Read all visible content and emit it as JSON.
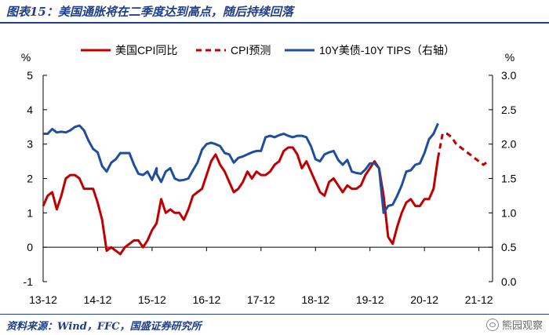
{
  "figure": {
    "title": "图表15：美国通胀将在二季度达到高点，随后持续回落",
    "source": "资料来源：Wind，FFC，国盛证券研究所",
    "watermark": "熊园观察"
  },
  "chart_data": {
    "type": "line",
    "title": "图表15：美国通胀将在二季度达到高点，随后持续回落",
    "y_left": {
      "label": "%",
      "range": [
        -1,
        5
      ],
      "ticks": [
        "-1",
        "0",
        "1",
        "2",
        "3",
        "4",
        "5"
      ]
    },
    "y_right": {
      "label": "%",
      "range": [
        0.0,
        3.0
      ],
      "ticks": [
        "0.0",
        "0.5",
        "1.0",
        "1.5",
        "2.0",
        "2.5",
        "3.0"
      ]
    },
    "x_axis": {
      "range": [
        "2013-12",
        "2022-03"
      ],
      "ticks": [
        {
          "label": "13-12",
          "date": "2013-12"
        },
        {
          "label": "14-12",
          "date": "2014-12"
        },
        {
          "label": "15-12",
          "date": "2015-12"
        },
        {
          "label": "16-12",
          "date": "2016-12"
        },
        {
          "label": "17-12",
          "date": "2017-12"
        },
        {
          "label": "18-12",
          "date": "2018-12"
        },
        {
          "label": "19-12",
          "date": "2019-12"
        },
        {
          "label": "20-12",
          "date": "2020-12"
        },
        {
          "label": "21-12",
          "date": "2021-12"
        }
      ]
    },
    "grid": false,
    "legend_position": "top",
    "series": [
      {
        "name": "美国CPI同比",
        "axis": "left",
        "color": "#c00000",
        "style": "solid",
        "points": [
          [
            "2013-12",
            1.2
          ],
          [
            "2014-01",
            1.5
          ],
          [
            "2014-02",
            1.6
          ],
          [
            "2014-03",
            1.1
          ],
          [
            "2014-04",
            1.5
          ],
          [
            "2014-05",
            2.0
          ],
          [
            "2014-06",
            2.1
          ],
          [
            "2014-07",
            2.1
          ],
          [
            "2014-08",
            2.0
          ],
          [
            "2014-09",
            1.7
          ],
          [
            "2014-10",
            1.7
          ],
          [
            "2014-11",
            1.7
          ],
          [
            "2014-12",
            1.3
          ],
          [
            "2015-01",
            0.8
          ],
          [
            "2015-02",
            -0.1
          ],
          [
            "2015-03",
            0.0
          ],
          [
            "2015-04",
            -0.1
          ],
          [
            "2015-05",
            -0.2
          ],
          [
            "2015-06",
            0.0
          ],
          [
            "2015-07",
            0.1
          ],
          [
            "2015-08",
            0.2
          ],
          [
            "2015-09",
            0.2
          ],
          [
            "2015-10",
            0.0
          ],
          [
            "2015-11",
            0.2
          ],
          [
            "2015-12",
            0.5
          ],
          [
            "2016-01",
            0.7
          ],
          [
            "2016-02",
            1.4
          ],
          [
            "2016-03",
            1.0
          ],
          [
            "2016-04",
            1.1
          ],
          [
            "2016-05",
            1.0
          ],
          [
            "2016-06",
            1.0
          ],
          [
            "2016-07",
            0.8
          ],
          [
            "2016-08",
            1.1
          ],
          [
            "2016-09",
            1.5
          ],
          [
            "2016-10",
            1.6
          ],
          [
            "2016-11",
            1.7
          ],
          [
            "2016-12",
            2.1
          ],
          [
            "2017-01",
            2.5
          ],
          [
            "2017-02",
            2.7
          ],
          [
            "2017-03",
            2.4
          ],
          [
            "2017-04",
            2.2
          ],
          [
            "2017-05",
            1.9
          ],
          [
            "2017-06",
            1.6
          ],
          [
            "2017-07",
            1.7
          ],
          [
            "2017-08",
            1.9
          ],
          [
            "2017-09",
            2.2
          ],
          [
            "2017-10",
            2.0
          ],
          [
            "2017-11",
            2.2
          ],
          [
            "2017-12",
            2.1
          ],
          [
            "2018-01",
            2.1
          ],
          [
            "2018-02",
            2.2
          ],
          [
            "2018-03",
            2.4
          ],
          [
            "2018-04",
            2.5
          ],
          [
            "2018-05",
            2.8
          ],
          [
            "2018-06",
            2.9
          ],
          [
            "2018-07",
            2.9
          ],
          [
            "2018-08",
            2.7
          ],
          [
            "2018-09",
            2.3
          ],
          [
            "2018-10",
            2.5
          ],
          [
            "2018-11",
            2.2
          ],
          [
            "2018-12",
            1.9
          ],
          [
            "2019-01",
            1.6
          ],
          [
            "2019-02",
            1.5
          ],
          [
            "2019-03",
            1.9
          ],
          [
            "2019-04",
            2.0
          ],
          [
            "2019-05",
            1.8
          ],
          [
            "2019-06",
            1.6
          ],
          [
            "2019-07",
            1.8
          ],
          [
            "2019-08",
            1.7
          ],
          [
            "2019-09",
            1.7
          ],
          [
            "2019-10",
            1.8
          ],
          [
            "2019-11",
            2.1
          ],
          [
            "2019-12",
            2.3
          ],
          [
            "2020-01",
            2.5
          ],
          [
            "2020-02",
            2.3
          ],
          [
            "2020-03",
            1.5
          ],
          [
            "2020-04",
            0.3
          ],
          [
            "2020-05",
            0.1
          ],
          [
            "2020-06",
            0.6
          ],
          [
            "2020-07",
            1.0
          ],
          [
            "2020-08",
            1.3
          ],
          [
            "2020-09",
            1.4
          ],
          [
            "2020-10",
            1.2
          ],
          [
            "2020-11",
            1.2
          ],
          [
            "2020-12",
            1.4
          ],
          [
            "2021-01",
            1.4
          ],
          [
            "2021-02",
            1.7
          ],
          [
            "2021-03",
            2.6
          ]
        ]
      },
      {
        "name": "CPI预测",
        "axis": "left",
        "color": "#c00000",
        "style": "dashed",
        "points": [
          [
            "2021-03",
            2.6
          ],
          [
            "2021-04",
            3.3
          ],
          [
            "2021-05",
            3.3
          ],
          [
            "2021-06",
            3.2
          ],
          [
            "2021-07",
            3.0
          ],
          [
            "2021-08",
            2.9
          ],
          [
            "2021-09",
            2.8
          ],
          [
            "2021-10",
            2.7
          ],
          [
            "2021-11",
            2.6
          ],
          [
            "2021-12",
            2.5
          ],
          [
            "2022-01",
            2.4
          ],
          [
            "2022-02",
            2.5
          ]
        ]
      },
      {
        "name": "10Y美债-10Y TIPS（右轴）",
        "axis": "right",
        "color": "#1f4e9e",
        "style": "solid",
        "points": [
          [
            "2013-12",
            2.15
          ],
          [
            "2014-01",
            2.15
          ],
          [
            "2014-02",
            2.22
          ],
          [
            "2014-03",
            2.17
          ],
          [
            "2014-04",
            2.18
          ],
          [
            "2014-05",
            2.17
          ],
          [
            "2014-06",
            2.2
          ],
          [
            "2014-07",
            2.25
          ],
          [
            "2014-08",
            2.27
          ],
          [
            "2014-09",
            2.2
          ],
          [
            "2014-10",
            2.05
          ],
          [
            "2014-11",
            1.93
          ],
          [
            "2014-12",
            1.88
          ],
          [
            "2015-01",
            1.68
          ],
          [
            "2015-02",
            1.6
          ],
          [
            "2015-03",
            1.73
          ],
          [
            "2015-04",
            1.78
          ],
          [
            "2015-05",
            1.87
          ],
          [
            "2015-06",
            1.87
          ],
          [
            "2015-07",
            1.87
          ],
          [
            "2015-08",
            1.7
          ],
          [
            "2015-09",
            1.57
          ],
          [
            "2015-10",
            1.55
          ],
          [
            "2015-11",
            1.6
          ],
          [
            "2015-12",
            1.48
          ],
          [
            "2015-13",
            1.65
          ],
          [
            "2016-01",
            1.57
          ],
          [
            "2016-02",
            1.45
          ],
          [
            "2016-03",
            1.6
          ],
          [
            "2016-04",
            1.65
          ],
          [
            "2016-05",
            1.5
          ],
          [
            "2016-06",
            1.47
          ],
          [
            "2016-07",
            1.48
          ],
          [
            "2016-08",
            1.5
          ],
          [
            "2016-09",
            1.62
          ],
          [
            "2016-10",
            1.73
          ],
          [
            "2016-11",
            1.92
          ],
          [
            "2016-12",
            2.0
          ],
          [
            "2017-01",
            2.02
          ],
          [
            "2017-02",
            2.0
          ],
          [
            "2017-03",
            1.97
          ],
          [
            "2017-04",
            1.87
          ],
          [
            "2017-05",
            1.85
          ],
          [
            "2017-06",
            1.73
          ],
          [
            "2017-07",
            1.8
          ],
          [
            "2017-08",
            1.82
          ],
          [
            "2017-09",
            1.85
          ],
          [
            "2017-10",
            1.88
          ],
          [
            "2017-11",
            1.9
          ],
          [
            "2017-12",
            1.9
          ],
          [
            "2018-01",
            2.1
          ],
          [
            "2018-02",
            2.12
          ],
          [
            "2018-03",
            2.1
          ],
          [
            "2018-04",
            2.13
          ],
          [
            "2018-05",
            2.15
          ],
          [
            "2018-06",
            2.12
          ],
          [
            "2018-07",
            2.1
          ],
          [
            "2018-08",
            2.12
          ],
          [
            "2018-09",
            2.12
          ],
          [
            "2018-10",
            2.1
          ],
          [
            "2018-11",
            1.97
          ],
          [
            "2018-12",
            1.78
          ],
          [
            "2019-01",
            1.75
          ],
          [
            "2019-02",
            1.85
          ],
          [
            "2019-03",
            1.88
          ],
          [
            "2019-04",
            1.9
          ],
          [
            "2019-05",
            1.77
          ],
          [
            "2019-06",
            1.7
          ],
          [
            "2019-07",
            1.77
          ],
          [
            "2019-08",
            1.6
          ],
          [
            "2019-09",
            1.58
          ],
          [
            "2019-10",
            1.57
          ],
          [
            "2019-11",
            1.63
          ],
          [
            "2019-12",
            1.72
          ],
          [
            "2020-01",
            1.72
          ],
          [
            "2020-02",
            1.65
          ],
          [
            "2020-03",
            1.0
          ],
          [
            "2020-04",
            1.1
          ],
          [
            "2020-05",
            1.12
          ],
          [
            "2020-06",
            1.25
          ],
          [
            "2020-07",
            1.4
          ],
          [
            "2020-08",
            1.6
          ],
          [
            "2020-09",
            1.62
          ],
          [
            "2020-10",
            1.7
          ],
          [
            "2020-11",
            1.72
          ],
          [
            "2020-12",
            1.87
          ],
          [
            "2021-01",
            2.07
          ],
          [
            "2021-02",
            2.15
          ],
          [
            "2021-03",
            2.3
          ]
        ]
      }
    ]
  }
}
